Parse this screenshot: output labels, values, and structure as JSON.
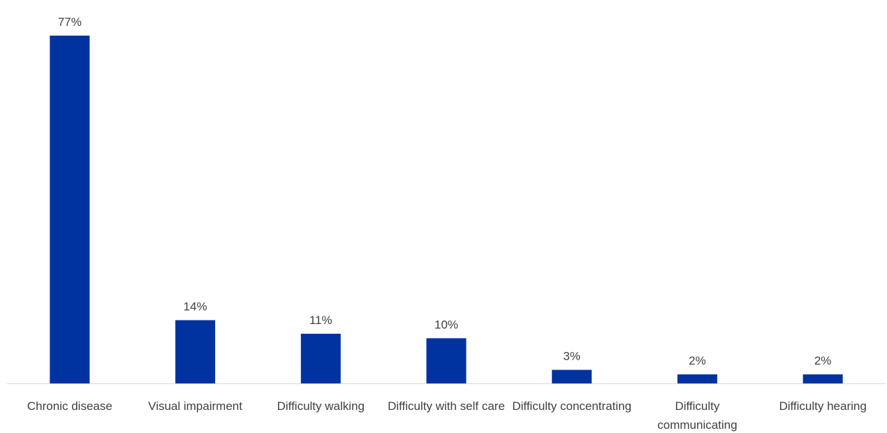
{
  "chart_data": {
    "type": "bar",
    "categories": [
      "Chronic disease",
      "Visual impairment",
      "Difficulty walking",
      "Difficulty with self care",
      "Difficulty concentrating",
      "Difficulty communicating",
      "Difficulty hearing"
    ],
    "values": [
      77,
      14,
      11,
      10,
      3,
      2,
      2
    ],
    "data_labels": [
      "77%",
      "14%",
      "11%",
      "10%",
      "3%",
      "2%",
      "2%"
    ],
    "value_unit": "%",
    "ylim": [
      0,
      80
    ],
    "grid": false,
    "legend": "none",
    "bar_color": "#0033A0",
    "title": "",
    "xlabel": "",
    "ylabel": ""
  }
}
